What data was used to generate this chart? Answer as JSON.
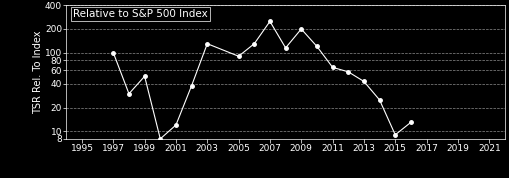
{
  "years": [
    1997,
    1998,
    1999,
    2000,
    2001,
    2002,
    2003,
    2005,
    2006,
    2007,
    2008,
    2009,
    2010,
    2011,
    2012,
    2013,
    2014,
    2015,
    2016
  ],
  "values": [
    100,
    30,
    50,
    8,
    12,
    38,
    130,
    90,
    130,
    250,
    115,
    200,
    120,
    65,
    57,
    43,
    25,
    9,
    13
  ],
  "line_color": "#ffffff",
  "marker_color": "#ffffff",
  "bg_color": "#000000",
  "grid_color": "#ffffff",
  "text_color": "#ffffff",
  "ylabel": "TSR Rel. To Index",
  "annotation": "Relative to S&P 500 Index",
  "xlim": [
    1994,
    2022
  ],
  "xticks": [
    1995,
    1997,
    1999,
    2001,
    2003,
    2005,
    2007,
    2009,
    2011,
    2013,
    2015,
    2017,
    2019,
    2021
  ],
  "ylim_log": [
    8,
    400
  ],
  "yticks": [
    8,
    10,
    20,
    40,
    60,
    80,
    100,
    200,
    400
  ],
  "ytick_labels": [
    "8",
    "10",
    "20",
    "40",
    "60",
    "80",
    "100",
    "200",
    "400"
  ],
  "title_fontsize": 7.5,
  "axis_fontsize": 7,
  "tick_fontsize": 6.5
}
